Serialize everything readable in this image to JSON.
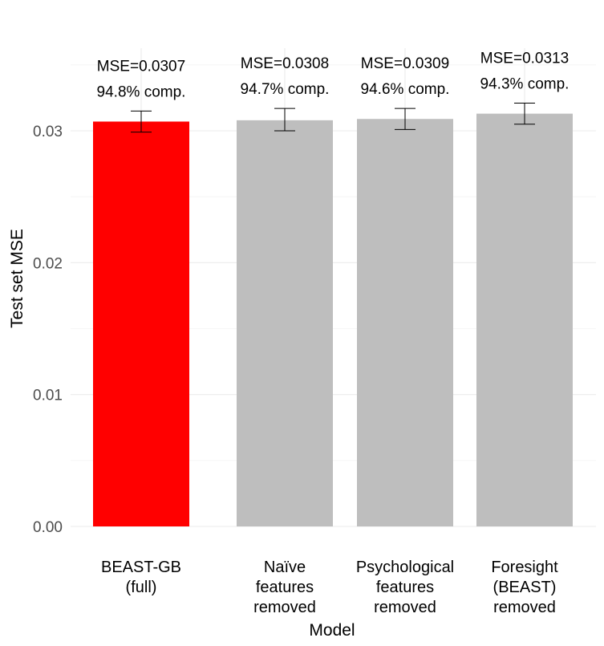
{
  "chart_data": {
    "type": "bar",
    "title": "",
    "xlabel": "Model",
    "ylabel": "Test set MSE",
    "ylim": [
      0,
      0.0355
    ],
    "yticks": [
      0.0,
      0.01,
      0.02,
      0.03
    ],
    "ytick_labels": [
      "0.00",
      "0.01",
      "0.02",
      "0.03"
    ],
    "grid": true,
    "legend": "none",
    "categories": [
      [
        "BEAST-GB",
        "(full)"
      ],
      [
        "Naïve",
        "features",
        "removed"
      ],
      [
        "Psychological",
        "features",
        "removed"
      ],
      [
        "Foresight",
        "(BEAST)",
        "removed"
      ]
    ],
    "values": [
      0.0307,
      0.0308,
      0.0309,
      0.0313
    ],
    "error_low": [
      0.0299,
      0.03,
      0.0301,
      0.0305
    ],
    "error_high": [
      0.0315,
      0.0317,
      0.0317,
      0.0321
    ],
    "annotations": [
      [
        "MSE=0.0307",
        "94.8% comp."
      ],
      [
        "MSE=0.0308",
        "94.7% comp."
      ],
      [
        "MSE=0.0309",
        "94.6% comp."
      ],
      [
        "MSE=0.0313",
        "94.3% comp."
      ]
    ],
    "colors": [
      "#ff0000",
      "#bebebe",
      "#bebebe",
      "#bebebe"
    ]
  }
}
